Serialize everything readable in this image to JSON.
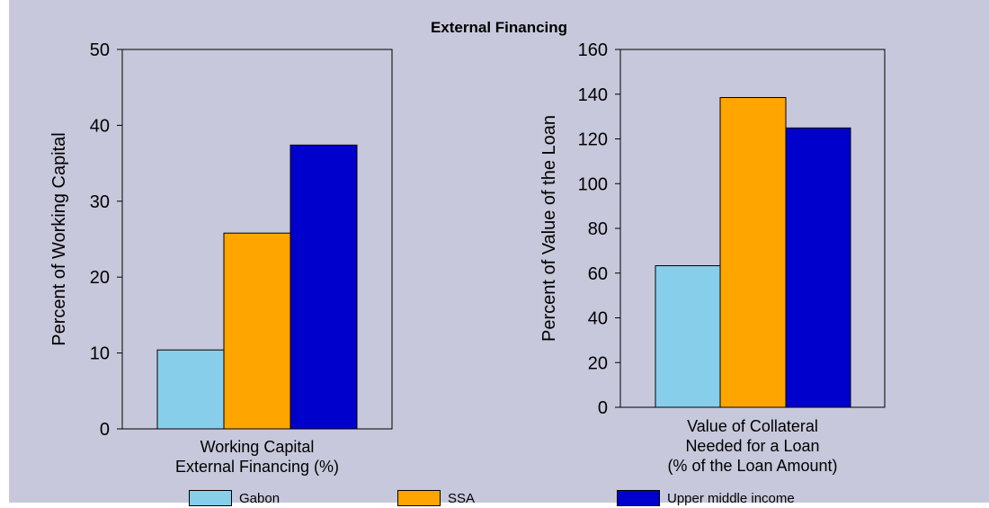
{
  "title": "External Financing",
  "colors": {
    "background": "#c8c8dc",
    "gabon": "#87ceeb",
    "ssa": "#ffa500",
    "upper_middle": "#0000cd"
  },
  "legend": [
    {
      "name": "Gabon",
      "color": "#87ceeb"
    },
    {
      "name": "SSA",
      "color": "#ffa500"
    },
    {
      "name": "Upper middle income",
      "color": "#0000cd"
    }
  ],
  "chart_data": [
    {
      "type": "bar",
      "title": "External Financing",
      "ylabel": "Percent of Working Capital",
      "xlabel_lines": [
        "Working Capital",
        "External Financing (%)"
      ],
      "ylim": [
        0,
        50
      ],
      "yticks": [
        0,
        10,
        20,
        30,
        40,
        50
      ],
      "series": [
        {
          "name": "Gabon",
          "values": [
            10.4
          ]
        },
        {
          "name": "SSA",
          "values": [
            25.8
          ]
        },
        {
          "name": "Upper middle income",
          "values": [
            37.4
          ]
        }
      ],
      "grid": false
    },
    {
      "type": "bar",
      "ylabel": "Percent of Value of the Loan",
      "xlabel_lines": [
        "Value of Collateral",
        "Needed for a Loan",
        "(% of the Loan Amount)"
      ],
      "ylim": [
        0,
        160
      ],
      "yticks": [
        0,
        20,
        40,
        60,
        80,
        100,
        120,
        140,
        160
      ],
      "series": [
        {
          "name": "Gabon",
          "values": [
            63.3
          ]
        },
        {
          "name": "SSA",
          "values": [
            138.5
          ]
        },
        {
          "name": "Upper middle income",
          "values": [
            124.9
          ]
        }
      ],
      "grid": false
    }
  ]
}
